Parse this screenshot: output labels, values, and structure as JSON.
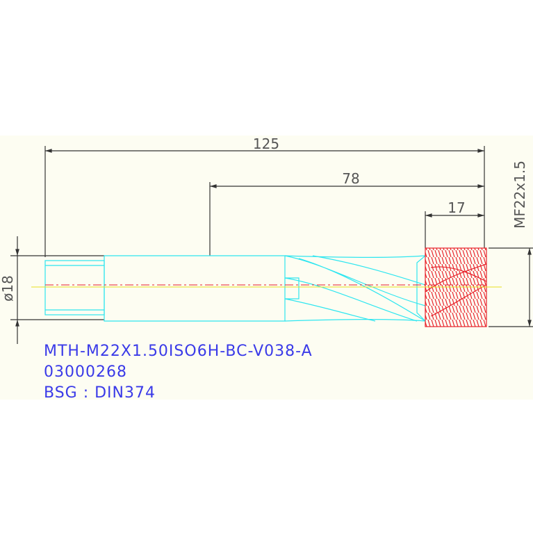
{
  "dimensions": {
    "overall_length": "125",
    "flute_length": "78",
    "thread_length": "17",
    "thread_size": "MF22x1.5",
    "shank_diameter": "ø18"
  },
  "notes": [
    "MTH-M22X1.50ISO6H-BC-V038-A",
    "03000268",
    "BSG : DIN374"
  ]
}
